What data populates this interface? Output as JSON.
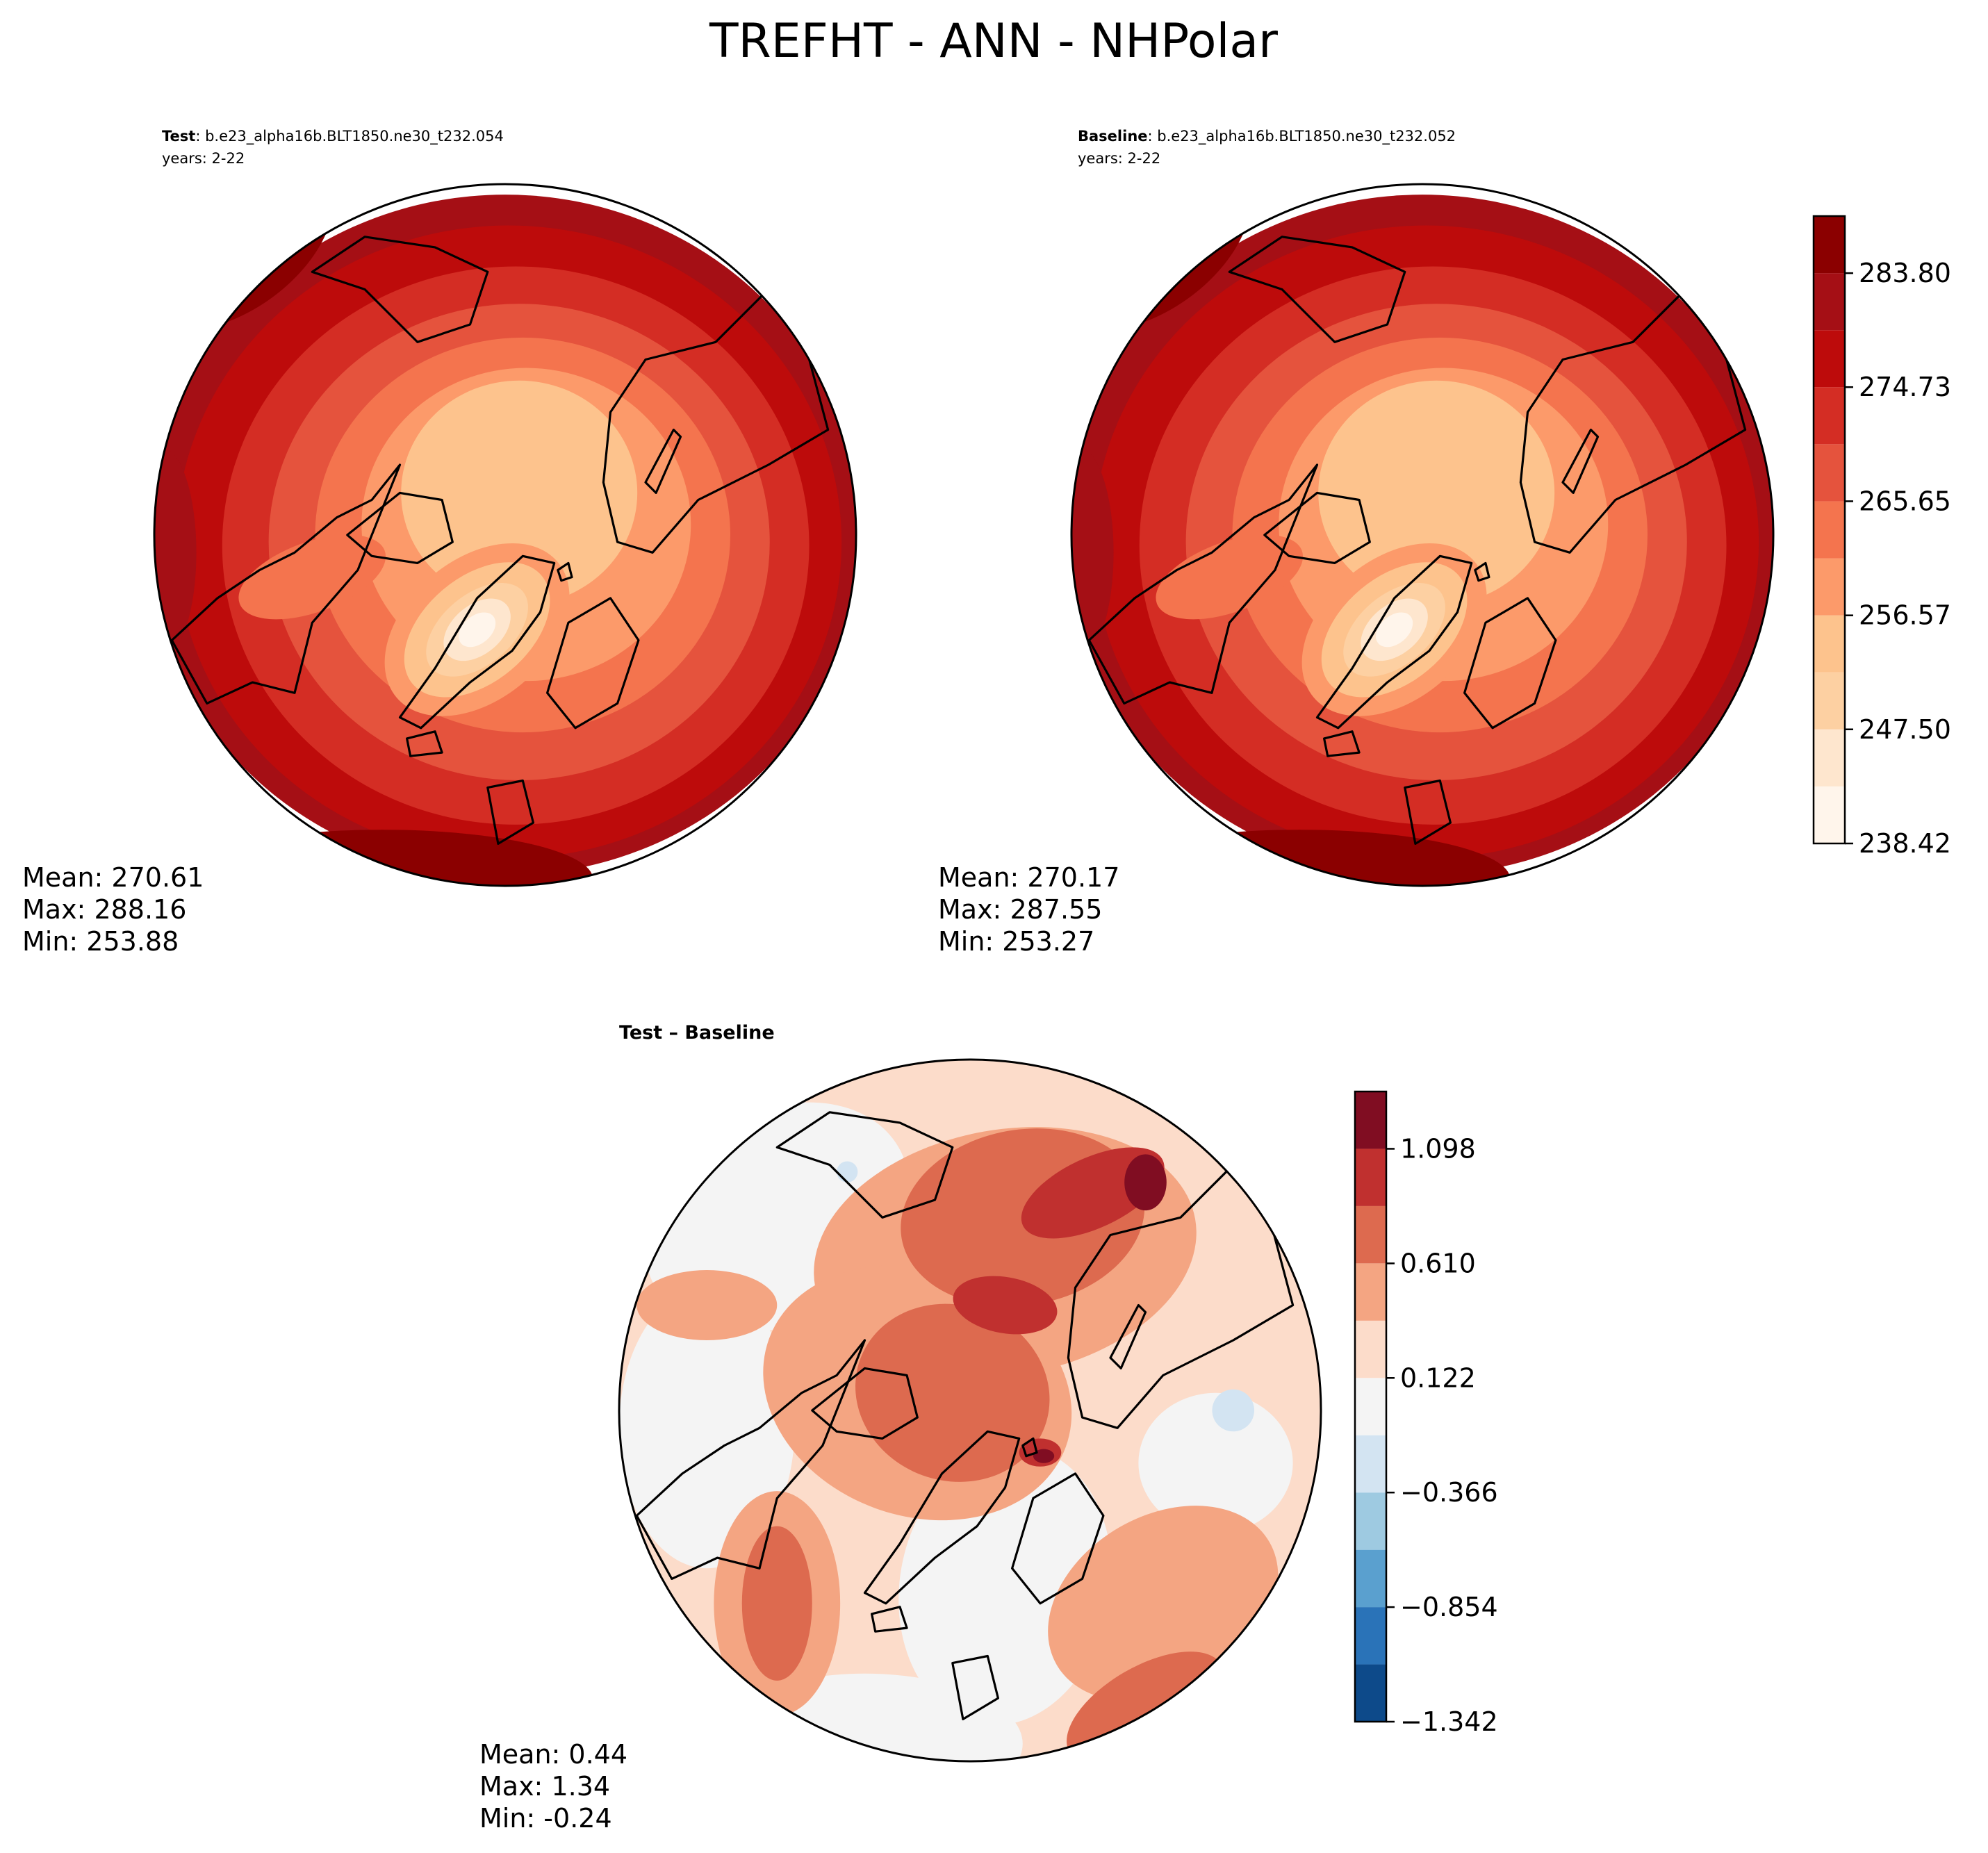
{
  "figure": {
    "title": "TREFHT - ANN - NHPolar"
  },
  "panels": {
    "test": {
      "label_bold": "Test",
      "label_rest": ": b.e23_alpha16b.BLT1850.ne30_t232.054",
      "years": "years: 2-22",
      "stats": [
        "Mean: 270.61",
        "Max: 288.16",
        "Min: 253.88"
      ]
    },
    "baseline": {
      "label_bold": "Baseline",
      "label_rest": ": b.e23_alpha16b.BLT1850.ne30_t232.052",
      "years": "years: 2-22",
      "stats": [
        "Mean: 270.17",
        "Max: 287.55",
        "Min: 253.27"
      ]
    },
    "diff": {
      "title": "Test – Baseline",
      "stats": [
        "Mean:  0.44",
        "Max:  1.34",
        "Min: -0.24"
      ]
    }
  },
  "chart_data": [
    {
      "type": "heatmap",
      "panel": "test",
      "projection": "north polar stereographic",
      "units": "",
      "color_levels": [
        238.42,
        242.96,
        247.5,
        252.03,
        256.57,
        261.11,
        265.65,
        270.19,
        274.73,
        279.26,
        283.8,
        288.34
      ],
      "colorbar_ticks": [
        "238.42",
        "247.50",
        "256.57",
        "265.65",
        "274.73",
        "283.80"
      ],
      "colors": [
        "#fff5eb",
        "#fee6ce",
        "#fdd0a2",
        "#fdc38d",
        "#fc9a6a",
        "#f4744e",
        "#e5533d",
        "#d42d24",
        "#bd0b0b",
        "#a50f15",
        "#8b0000"
      ],
      "mean": 270.61,
      "max": 288.16,
      "min": 253.88
    },
    {
      "type": "heatmap",
      "panel": "baseline",
      "projection": "north polar stereographic",
      "color_levels": [
        238.42,
        242.96,
        247.5,
        252.03,
        256.57,
        261.11,
        265.65,
        270.19,
        274.73,
        279.26,
        283.8,
        288.34
      ],
      "colorbar_ticks": [
        "238.42",
        "247.50",
        "256.57",
        "265.65",
        "274.73",
        "283.80"
      ],
      "mean": 270.17,
      "max": 287.55,
      "min": 253.27
    },
    {
      "type": "heatmap",
      "panel": "diff",
      "projection": "north polar stereographic",
      "color_levels": [
        -1.342,
        -1.098,
        -0.854,
        -0.61,
        -0.366,
        -0.122,
        0.122,
        0.366,
        0.61,
        0.854,
        1.098,
        1.342
      ],
      "colorbar_ticks": [
        "−1.342",
        "−0.854",
        "−0.366",
        "0.122",
        "0.610",
        "1.098"
      ],
      "colors": [
        "#0d4a8a",
        "#2a73b8",
        "#5aa0cf",
        "#9ecae1",
        "#d3e4f2",
        "#f4f4f4",
        "#fcdcca",
        "#f4a582",
        "#dd6a4f",
        "#c0302f",
        "#800d22"
      ],
      "mean": 0.44,
      "max": 1.34,
      "min": -0.24
    }
  ],
  "palette": {
    "seq": [
      "#fff5eb",
      "#fee6ce",
      "#fdd0a2",
      "#fdc38d",
      "#fc9a6a",
      "#f4744e",
      "#e5533d",
      "#d42d24",
      "#bd0b0b",
      "#a50f15",
      "#8b0000"
    ],
    "div": [
      "#0d4a8a",
      "#2a73b8",
      "#5aa0cf",
      "#9ecae1",
      "#d3e4f2",
      "#f4f4f4",
      "#fcdcca",
      "#f4a582",
      "#dd6a4f",
      "#c0302f",
      "#800d22"
    ]
  }
}
